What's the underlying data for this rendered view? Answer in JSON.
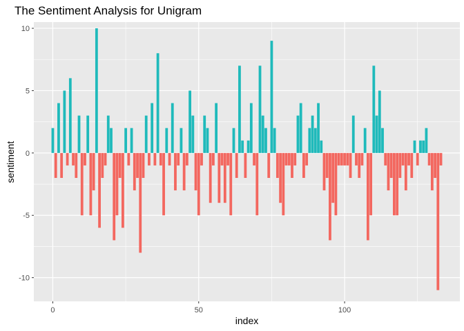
{
  "chart_data": {
    "type": "bar",
    "title": "The Sentiment Analysis for Unigram",
    "xlabel": "index",
    "ylabel": "sentiment",
    "xlim": [
      -6.5,
      139.5
    ],
    "ylim": [
      -11.9,
      10.5
    ],
    "xticks": [
      0,
      50,
      100
    ],
    "yticks": [
      -10,
      -5,
      0,
      5,
      10
    ],
    "ytick_labels": [
      "-10",
      "-5",
      "0",
      "5",
      "10"
    ],
    "xtick_labels": [
      "0",
      "50",
      "100"
    ],
    "grid": true,
    "legend": "none",
    "colors": {
      "positive": "#1fbabb",
      "negative": "#f3675f",
      "panel": "#e9e9e9",
      "grid": "#ffffff"
    },
    "x": [
      0,
      1,
      2,
      3,
      4,
      5,
      6,
      7,
      8,
      9,
      10,
      11,
      12,
      13,
      14,
      15,
      16,
      17,
      18,
      19,
      20,
      21,
      22,
      23,
      24,
      25,
      26,
      27,
      28,
      29,
      30,
      31,
      32,
      33,
      34,
      35,
      36,
      37,
      38,
      39,
      40,
      41,
      42,
      43,
      44,
      45,
      46,
      47,
      48,
      49,
      50,
      51,
      52,
      53,
      54,
      55,
      56,
      57,
      58,
      59,
      60,
      61,
      62,
      63,
      64,
      65,
      66,
      67,
      68,
      69,
      70,
      71,
      72,
      73,
      74,
      75,
      76,
      77,
      78,
      79,
      80,
      81,
      82,
      83,
      84,
      85,
      86,
      87,
      88,
      89,
      90,
      91,
      92,
      93,
      94,
      95,
      96,
      97,
      98,
      99,
      100,
      101,
      102,
      103,
      104,
      105,
      106,
      107,
      108,
      109,
      110,
      111,
      112,
      113,
      114,
      115,
      116,
      117,
      118,
      119,
      120,
      121,
      122,
      123,
      124,
      125,
      126,
      127,
      128,
      129,
      130,
      131,
      132,
      133
    ],
    "values": [
      2,
      -2,
      4,
      -2,
      5,
      -1,
      6,
      -1,
      -2,
      3,
      -5,
      -1,
      3,
      -5,
      -3,
      10,
      -6,
      -2,
      -1,
      3,
      2,
      -7,
      -5,
      -2,
      -6,
      2,
      -1,
      2,
      -3,
      -2,
      -8,
      -2,
      3,
      -1,
      4,
      -1,
      8,
      -1,
      -5,
      2,
      -1,
      4,
      -3,
      -1,
      2,
      -3,
      -1,
      5,
      3,
      -3,
      -5,
      -1,
      3,
      2,
      -4,
      -1,
      4,
      -4,
      -1,
      -4,
      -1,
      -5,
      2,
      -2,
      7,
      1,
      -2,
      1,
      4,
      -1,
      -5,
      7,
      3,
      2,
      -2,
      9,
      2,
      -2,
      -4,
      -5,
      -1,
      -1,
      -2,
      -1,
      3,
      4,
      -2,
      -1,
      2,
      3,
      2,
      4,
      1,
      -3,
      -2,
      -7,
      -4,
      -5,
      -1,
      -1,
      -1,
      -1,
      -2,
      3,
      -1,
      -2,
      -1,
      2,
      -7,
      -5,
      7,
      3,
      5,
      2,
      -1,
      -3,
      -2,
      -5,
      -5,
      -2,
      -1,
      -3,
      -1,
      -2,
      1,
      -1,
      1,
      1,
      2,
      -1,
      -3,
      -2,
      -11,
      -1
    ]
  }
}
